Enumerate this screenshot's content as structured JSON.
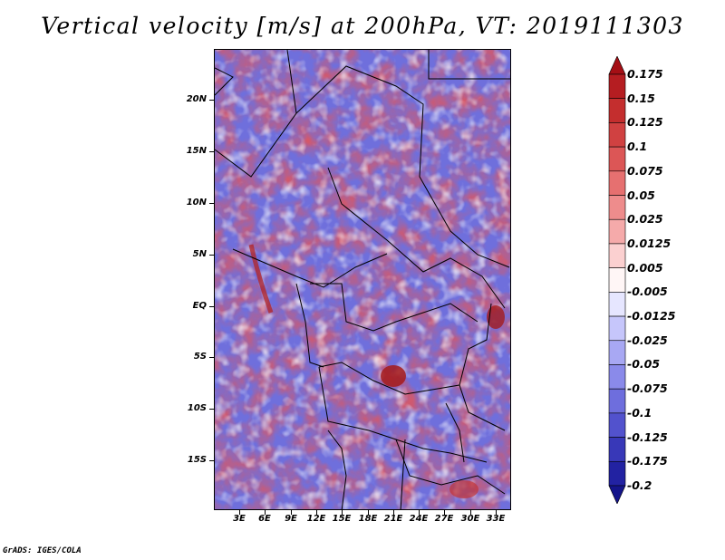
{
  "title": "Vertical velocity [m/s] at 200hPa, VT: 2019111303",
  "footer": "GrADS: IGES/COLA",
  "map": {
    "lat_labels": [
      "20N",
      "15N",
      "10N",
      "5N",
      "EQ",
      "5S",
      "10S",
      "15S"
    ],
    "lon_labels": [
      "3E",
      "6E",
      "9E",
      "12E",
      "15E",
      "18E",
      "21E",
      "24E",
      "27E",
      "30E",
      "33E"
    ]
  },
  "colorbar": {
    "labels": [
      "0.175",
      "0.15",
      "0.125",
      "0.1",
      "0.075",
      "0.05",
      "0.025",
      "0.0125",
      "0.005",
      "-0.005",
      "-0.0125",
      "-0.025",
      "-0.05",
      "-0.075",
      "-0.1",
      "-0.125",
      "-0.175",
      "-0.2"
    ],
    "colors": [
      "#a50f15",
      "#b51d21",
      "#c42e2e",
      "#d04141",
      "#dc5656",
      "#e67070",
      "#ee8c8c",
      "#f5aaaa",
      "#fbd0d0",
      "#fff6f6",
      "#e6e6ff",
      "#c6c6fb",
      "#a8a8f3",
      "#8a8aea",
      "#6e6edd",
      "#5252cd",
      "#3838b8",
      "#2222a2",
      "#14148a"
    ]
  }
}
